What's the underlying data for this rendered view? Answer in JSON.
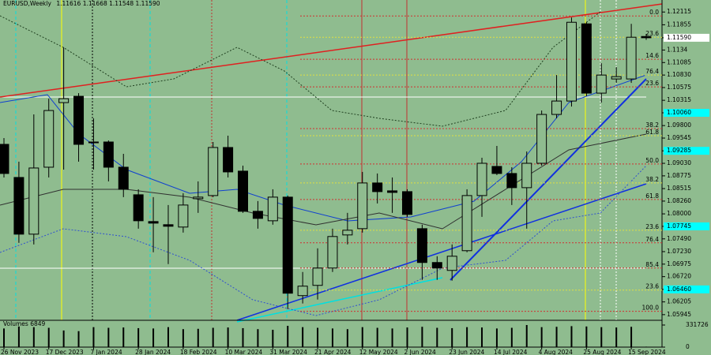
{
  "chart_data": {
    "type": "candlestick",
    "header": {
      "symbol": "EURUSD,Weekly",
      "ohlc": [
        "1.11616",
        "1.11668",
        "1.11548",
        "1.11590"
      ]
    },
    "categories": [
      "26 Nov 2023",
      null,
      null,
      "17 Dec 2023",
      null,
      null,
      "7 Jan 2024",
      null,
      null,
      "28 Jan 2024",
      null,
      null,
      "18 Feb 2024",
      null,
      null,
      "10 Mar 2024",
      null,
      null,
      "31 Mar 2024",
      null,
      null,
      "21 Apr 2024",
      null,
      null,
      "12 May 2024",
      null,
      null,
      "2 Jun 2024",
      null,
      null,
      "23 Jun 2024",
      null,
      null,
      "14 Jul 2024",
      null,
      null,
      "4 Aug 2024",
      null,
      null,
      "25 Aug 2024",
      null,
      null,
      "15 Sep 2024",
      null
    ],
    "open": [
      1.09417,
      1.08742,
      1.07586,
      1.08951,
      1.10268,
      1.10397,
      1.09465,
      1.09465,
      1.08951,
      1.08389,
      1.07843,
      1.07779,
      1.07731,
      1.08309,
      1.08373,
      1.09353,
      1.08871,
      1.08052,
      1.07859,
      1.08341,
      1.06333,
      1.06542,
      1.06895,
      1.0757,
      1.07698,
      1.0863,
      1.08469,
      1.08453,
      1.07698,
      1.07008,
      1.06847,
      1.07249,
      1.08373,
      1.08967,
      1.08823,
      1.08534,
      1.09031,
      1.10027,
      1.103,
      1.11874,
      1.10461,
      1.1075,
      1.1075,
      1.11616
    ],
    "high": [
      1.09545,
      1.09064,
      1.10027,
      1.10348,
      1.11392,
      1.10461,
      1.09947,
      1.09497,
      1.09224,
      1.08501,
      1.08341,
      1.0818,
      1.08421,
      1.08662,
      1.09465,
      1.09594,
      1.08983,
      1.08261,
      1.08501,
      1.08373,
      1.06815,
      1.07297,
      1.07698,
      1.0802,
      1.08855,
      1.08823,
      1.08742,
      1.08501,
      1.07779,
      1.07136,
      1.07377,
      1.08501,
      1.09144,
      1.09385,
      1.08951,
      1.09272,
      1.10107,
      1.1083,
      1.12003,
      1.11906,
      1.11071,
      1.10991,
      1.11874,
      1.11668
    ],
    "low": [
      1.08742,
      1.07409,
      1.07377,
      1.08742,
      1.08903,
      1.09064,
      1.08903,
      1.08662,
      1.08341,
      1.07698,
      1.07217,
      1.06976,
      1.07618,
      1.0802,
      1.08341,
      1.08742,
      1.0802,
      1.07698,
      1.07779,
      1.0606,
      1.06173,
      1.06253,
      1.06815,
      1.07377,
      1.07618,
      1.08212,
      1.0802,
      1.07939,
      1.06655,
      1.06655,
      1.06639,
      1.07217,
      1.07939,
      1.08791,
      1.0818,
      1.07698,
      1.08983,
      1.09947,
      1.10188,
      1.10397,
      1.10268,
      1.1067,
      1.1067,
      1.11548
    ],
    "close": [
      1.08823,
      1.07586,
      1.08935,
      1.10107,
      1.10348,
      1.09417,
      1.09449,
      1.08951,
      1.08501,
      1.07859,
      1.07811,
      1.07747,
      1.0818,
      1.08341,
      1.09353,
      1.08855,
      1.08052,
      1.07907,
      1.08341,
      1.06382,
      1.06526,
      1.06895,
      1.07538,
      1.07666,
      1.0863,
      1.08453,
      1.08437,
      1.07988,
      1.07008,
      1.06895,
      1.07136,
      1.08373,
      1.09031,
      1.08823,
      1.08534,
      1.09031,
      1.10027,
      1.103,
      1.11906,
      1.10461,
      1.1083,
      1.10798,
      1.11601,
      1.1159
    ],
    "bull_color": "#8fbc8f",
    "bear_color": "#000000",
    "ylim": [
      1.0583,
      1.1236
    ],
    "yticks": [
      1.12115,
      1.11855,
      {
        "value": 1.1159,
        "label": "1.11590",
        "bg": "#ffffff"
      },
      1.1134,
      1.11085,
      {
        "value": 1.1083,
        "label": "1.10830"
      },
      1.10575,
      1.10315,
      {
        "value": 1.1006,
        "label": "1.10060",
        "bg": "#00ffff"
      },
      {
        "value": 1.098,
        "label": "1.09800"
      },
      1.09545,
      {
        "value": 1.09285,
        "bg": "#00ffff"
      },
      {
        "value": 1.0903,
        "label": "1.09030"
      },
      1.08775,
      1.08515,
      {
        "value": 1.0826,
        "label": "1.08260"
      },
      {
        "value": 1.08,
        "label": "1.08000"
      },
      {
        "value": 1.07745,
        "bg": "#00ffff"
      },
      {
        "value": 1.0749,
        "label": "1.07490"
      },
      {
        "value": 1.0723,
        "label": "1.07230"
      },
      1.06975,
      {
        "value": 1.0672,
        "label": "1.06720"
      },
      {
        "value": 1.0646,
        "label": "1.06460",
        "bg": "#00ffff"
      },
      1.06205,
      1.05945
    ],
    "fib_levels": [
      {
        "label": "0.0",
        "value": 1.12035,
        "color": "#d03030"
      },
      {
        "label": "23.6",
        "value": 1.11601,
        "color": "#e0e040"
      },
      {
        "label": "14.6",
        "value": 1.11151,
        "color": "#d03030"
      },
      {
        "label": "76.4",
        "value": 1.1083,
        "color": "#e0e040"
      },
      {
        "label": "23.6",
        "value": 1.10589,
        "color": "#d03030"
      },
      {
        "label": "38.2",
        "value": 1.09738,
        "color": "#d03030"
      },
      {
        "label": "61.8",
        "value": 1.09594,
        "color": "#e0e040"
      },
      {
        "label": "50.0",
        "value": 1.09016,
        "color": "#d03030"
      },
      {
        "label": "38.2",
        "value": 1.0863,
        "color": "#e0e040"
      },
      {
        "label": "61.8",
        "value": 1.08293,
        "color": "#d03030"
      },
      {
        "label": "23.6",
        "value": 1.07666,
        "color": "#e0e040"
      },
      {
        "label": "76.4",
        "value": 1.0741,
        "color": "#d03030"
      },
      {
        "label": "85.4",
        "value": 1.06895,
        "color": "#d03030"
      },
      {
        "label": "23.6",
        "value": 1.06446,
        "color": "#e0e040"
      },
      {
        "label": "100.0",
        "value": 1.06012,
        "color": "#d03030"
      }
    ],
    "volume": {
      "label": "Volumes",
      "color": "#000000",
      "values": [
        280000,
        310000,
        300000,
        290000,
        250000,
        240000,
        300000,
        290000,
        295000,
        285000,
        280000,
        300000,
        270000,
        275000,
        290000,
        295000,
        285000,
        270000,
        260000,
        320000,
        300000,
        290000,
        280000,
        270000,
        300000,
        290000,
        280000,
        295000,
        305000,
        290000,
        285000,
        300000,
        295000,
        280000,
        290000,
        331726,
        300000,
        305000,
        315000,
        310000,
        300000,
        295000,
        305000,
        6849
      ],
      "ylim": [
        0,
        331726
      ],
      "yticks": [
        331726,
        0
      ]
    }
  }
}
